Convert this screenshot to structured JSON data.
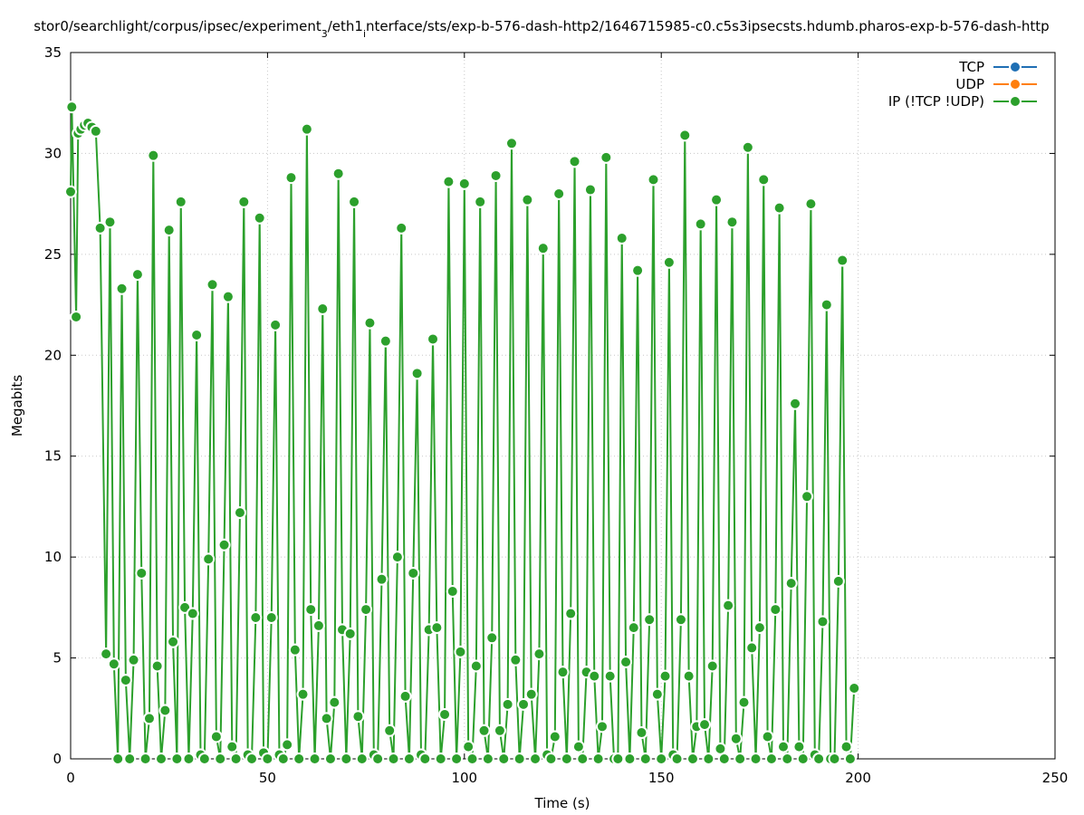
{
  "chart_data": {
    "type": "line",
    "title": "stor0/searchlight/corpus/ipsec/experiment_3/eth1_interface/sts/exp-b-576-dash-http2/1646715985-c0.c5s3ipsecsts.hdumb.pharos-exp-b-576-dash-http",
    "x_label": "Time (s)",
    "y_label": "Megabits",
    "xlim": [
      0,
      250
    ],
    "ylim": [
      0,
      35
    ],
    "xticks": [
      0,
      50,
      100,
      150,
      200,
      250
    ],
    "yticks": [
      0,
      5,
      10,
      15,
      20,
      25,
      30,
      35
    ],
    "grid": true,
    "legend": "upper right",
    "x": [
      0,
      0.3,
      1.4,
      1.9,
      2.6,
      3.5,
      4.4,
      5.4,
      6.4,
      7.5,
      9,
      10,
      11,
      12,
      13,
      14,
      15,
      16,
      17,
      18,
      19,
      20,
      21,
      22,
      23,
      24,
      25,
      26,
      27,
      28,
      29,
      30,
      31,
      32,
      33,
      34,
      35,
      36,
      37,
      38,
      39,
      40,
      41,
      42,
      43,
      44,
      45,
      46,
      47,
      48,
      49,
      50,
      51,
      52,
      53,
      54,
      55,
      56,
      57,
      58,
      59,
      60,
      61,
      62,
      63,
      64,
      65,
      66,
      67,
      68,
      69,
      70,
      71,
      72,
      73,
      74,
      75,
      76,
      77,
      78,
      79,
      80,
      81,
      82,
      83,
      84,
      85,
      86,
      87,
      88,
      89,
      90,
      91,
      92,
      93,
      94,
      95,
      96,
      97,
      98,
      99,
      100,
      101,
      102,
      103,
      104,
      105,
      106,
      107,
      108,
      109,
      110,
      111,
      112,
      113,
      114,
      115,
      116,
      117,
      118,
      119,
      120,
      121,
      122,
      123,
      124,
      125,
      126,
      127,
      128,
      129,
      130,
      131,
      132,
      133,
      134,
      135,
      136,
      137,
      138,
      139,
      140,
      141,
      142,
      143,
      144,
      145,
      146,
      147,
      148,
      149,
      150,
      151,
      152,
      153,
      154,
      155,
      156,
      157,
      158,
      159,
      160,
      161,
      162,
      163,
      164,
      165,
      166,
      167,
      168,
      169,
      170,
      171,
      172,
      173,
      174,
      175,
      176,
      177,
      178,
      179,
      180,
      181,
      182,
      183,
      184,
      185,
      186,
      187,
      188,
      189,
      190,
      191,
      192,
      193,
      194,
      195,
      196,
      197,
      198,
      199
    ],
    "series": [
      {
        "name": "TCP",
        "color": "#1f6fb4"
      },
      {
        "name": "UDP",
        "color": "#ff7f0e"
      },
      {
        "name": "IP (!TCP  !UDP)",
        "color": "#2ca02c",
        "values": [
          28.1,
          32.3,
          21.9,
          31,
          31.2,
          31.4,
          31.5,
          31.3,
          31.1,
          26.3,
          5.2,
          26.6,
          4.7,
          0,
          23.3,
          3.9,
          0,
          4.9,
          24,
          9.2,
          0,
          2,
          29.9,
          4.6,
          0,
          2.4,
          26.2,
          5.8,
          0,
          27.6,
          7.5,
          0,
          7.2,
          21,
          0.2,
          0,
          9.9,
          23.5,
          1.1,
          0,
          10.6,
          22.9,
          0.6,
          0,
          12.2,
          27.6,
          0.2,
          0,
          7,
          26.8,
          0.3,
          0,
          7,
          21.5,
          0.2,
          0,
          0.7,
          28.8,
          5.4,
          0,
          3.2,
          31.2,
          7.4,
          0,
          6.6,
          22.3,
          2,
          0,
          2.8,
          29,
          6.4,
          0,
          6.2,
          27.6,
          2.1,
          0,
          7.4,
          21.6,
          0.2,
          0,
          8.9,
          20.7,
          1.4,
          0,
          10,
          26.3,
          3.1,
          0,
          9.2,
          19.1,
          0.2,
          0,
          6.4,
          20.8,
          6.5,
          0,
          2.2,
          28.6,
          8.3,
          0,
          5.3,
          28.5,
          0.6,
          0,
          4.6,
          27.6,
          1.4,
          0,
          6,
          28.9,
          1.4,
          0,
          2.7,
          30.5,
          4.9,
          0,
          2.7,
          27.7,
          3.2,
          0,
          5.2,
          25.3,
          0.2,
          0,
          1.1,
          28,
          4.3,
          0,
          7.2,
          29.6,
          0.6,
          0,
          4.3,
          28.2,
          4.1,
          0,
          1.6,
          29.8,
          4.1,
          0,
          0,
          25.8,
          4.8,
          0,
          6.5,
          24.2,
          1.3,
          0,
          6.9,
          28.7,
          3.2,
          0,
          4.1,
          24.6,
          0.2,
          0,
          6.9,
          30.9,
          4.1,
          0,
          1.6,
          26.5,
          1.7,
          0,
          4.6,
          27.7,
          0.5,
          0,
          7.6,
          26.6,
          1,
          0,
          2.8,
          30.3,
          5.5,
          0,
          6.5,
          28.7,
          1.1,
          0,
          7.4,
          27.3,
          0.6,
          0,
          8.7,
          17.6,
          0.6,
          0,
          13,
          27.5,
          0.2,
          0,
          6.8,
          22.5,
          0,
          0,
          8.8,
          24.7,
          0.6,
          0,
          3.5
        ]
      }
    ]
  }
}
